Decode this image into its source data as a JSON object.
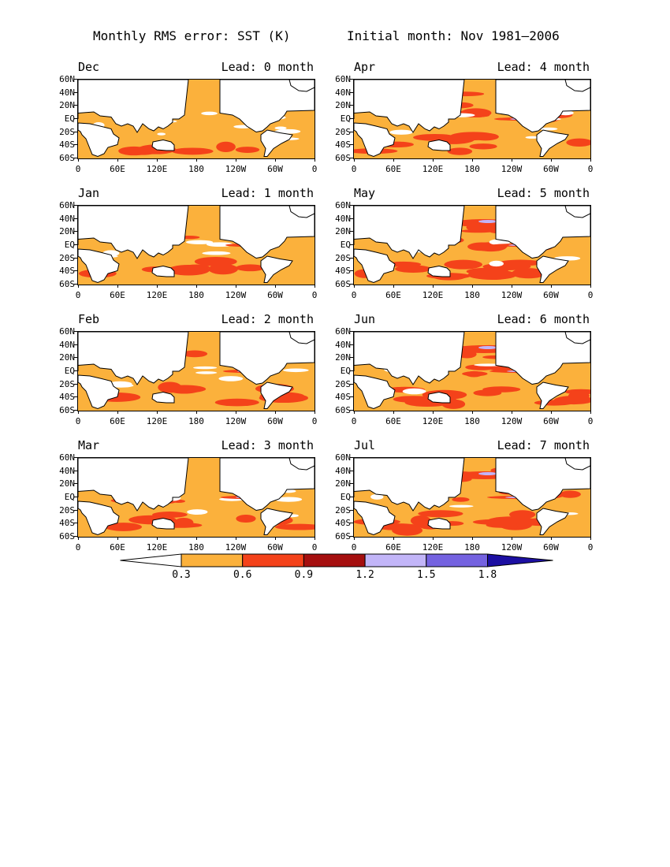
{
  "figure": {
    "title_left": "Monthly RMS error: SST (K)",
    "title_right": "Initial month: Nov 1981–2006"
  },
  "y_labels": [
    "60N",
    "40N",
    "20N",
    "EQ",
    "20S",
    "40S",
    "60S"
  ],
  "x_labels": [
    "0",
    "60E",
    "120E",
    "180",
    "120W",
    "60W",
    "0"
  ],
  "panels": [
    {
      "month": "Dec",
      "lead": "Lead: 0 month",
      "lead_months": 0
    },
    {
      "month": "Jan",
      "lead": "Lead: 1 month",
      "lead_months": 1
    },
    {
      "month": "Feb",
      "lead": "Lead: 2 month",
      "lead_months": 2
    },
    {
      "month": "Mar",
      "lead": "Lead: 3 month",
      "lead_months": 3
    },
    {
      "month": "Apr",
      "lead": "Lead: 4 month",
      "lead_months": 4
    },
    {
      "month": "May",
      "lead": "Lead: 5 month",
      "lead_months": 5
    },
    {
      "month": "Jun",
      "lead": "Lead: 6 month",
      "lead_months": 6
    },
    {
      "month": "Jul",
      "lead": "Lead: 7 month",
      "lead_months": 7
    }
  ],
  "colorbar": {
    "labels": [
      "0.3",
      "0.6",
      "0.9",
      "1.2",
      "1.5",
      "1.8"
    ],
    "thresholds": [
      0.3,
      0.6,
      0.9,
      1.2,
      1.5,
      1.8
    ],
    "colors": [
      "#ffffff",
      "#fbb13c",
      "#f4421a",
      "#a50f0f",
      "#c2b5f8",
      "#7462e0",
      "#1c0fa2"
    ]
  },
  "colors": {
    "land": "#ffffff",
    "coast": "#000000",
    "ocean_low": "#fbb13c",
    "ocean_mid": "#f4421a",
    "ocean_high": "#a50f0f"
  }
}
